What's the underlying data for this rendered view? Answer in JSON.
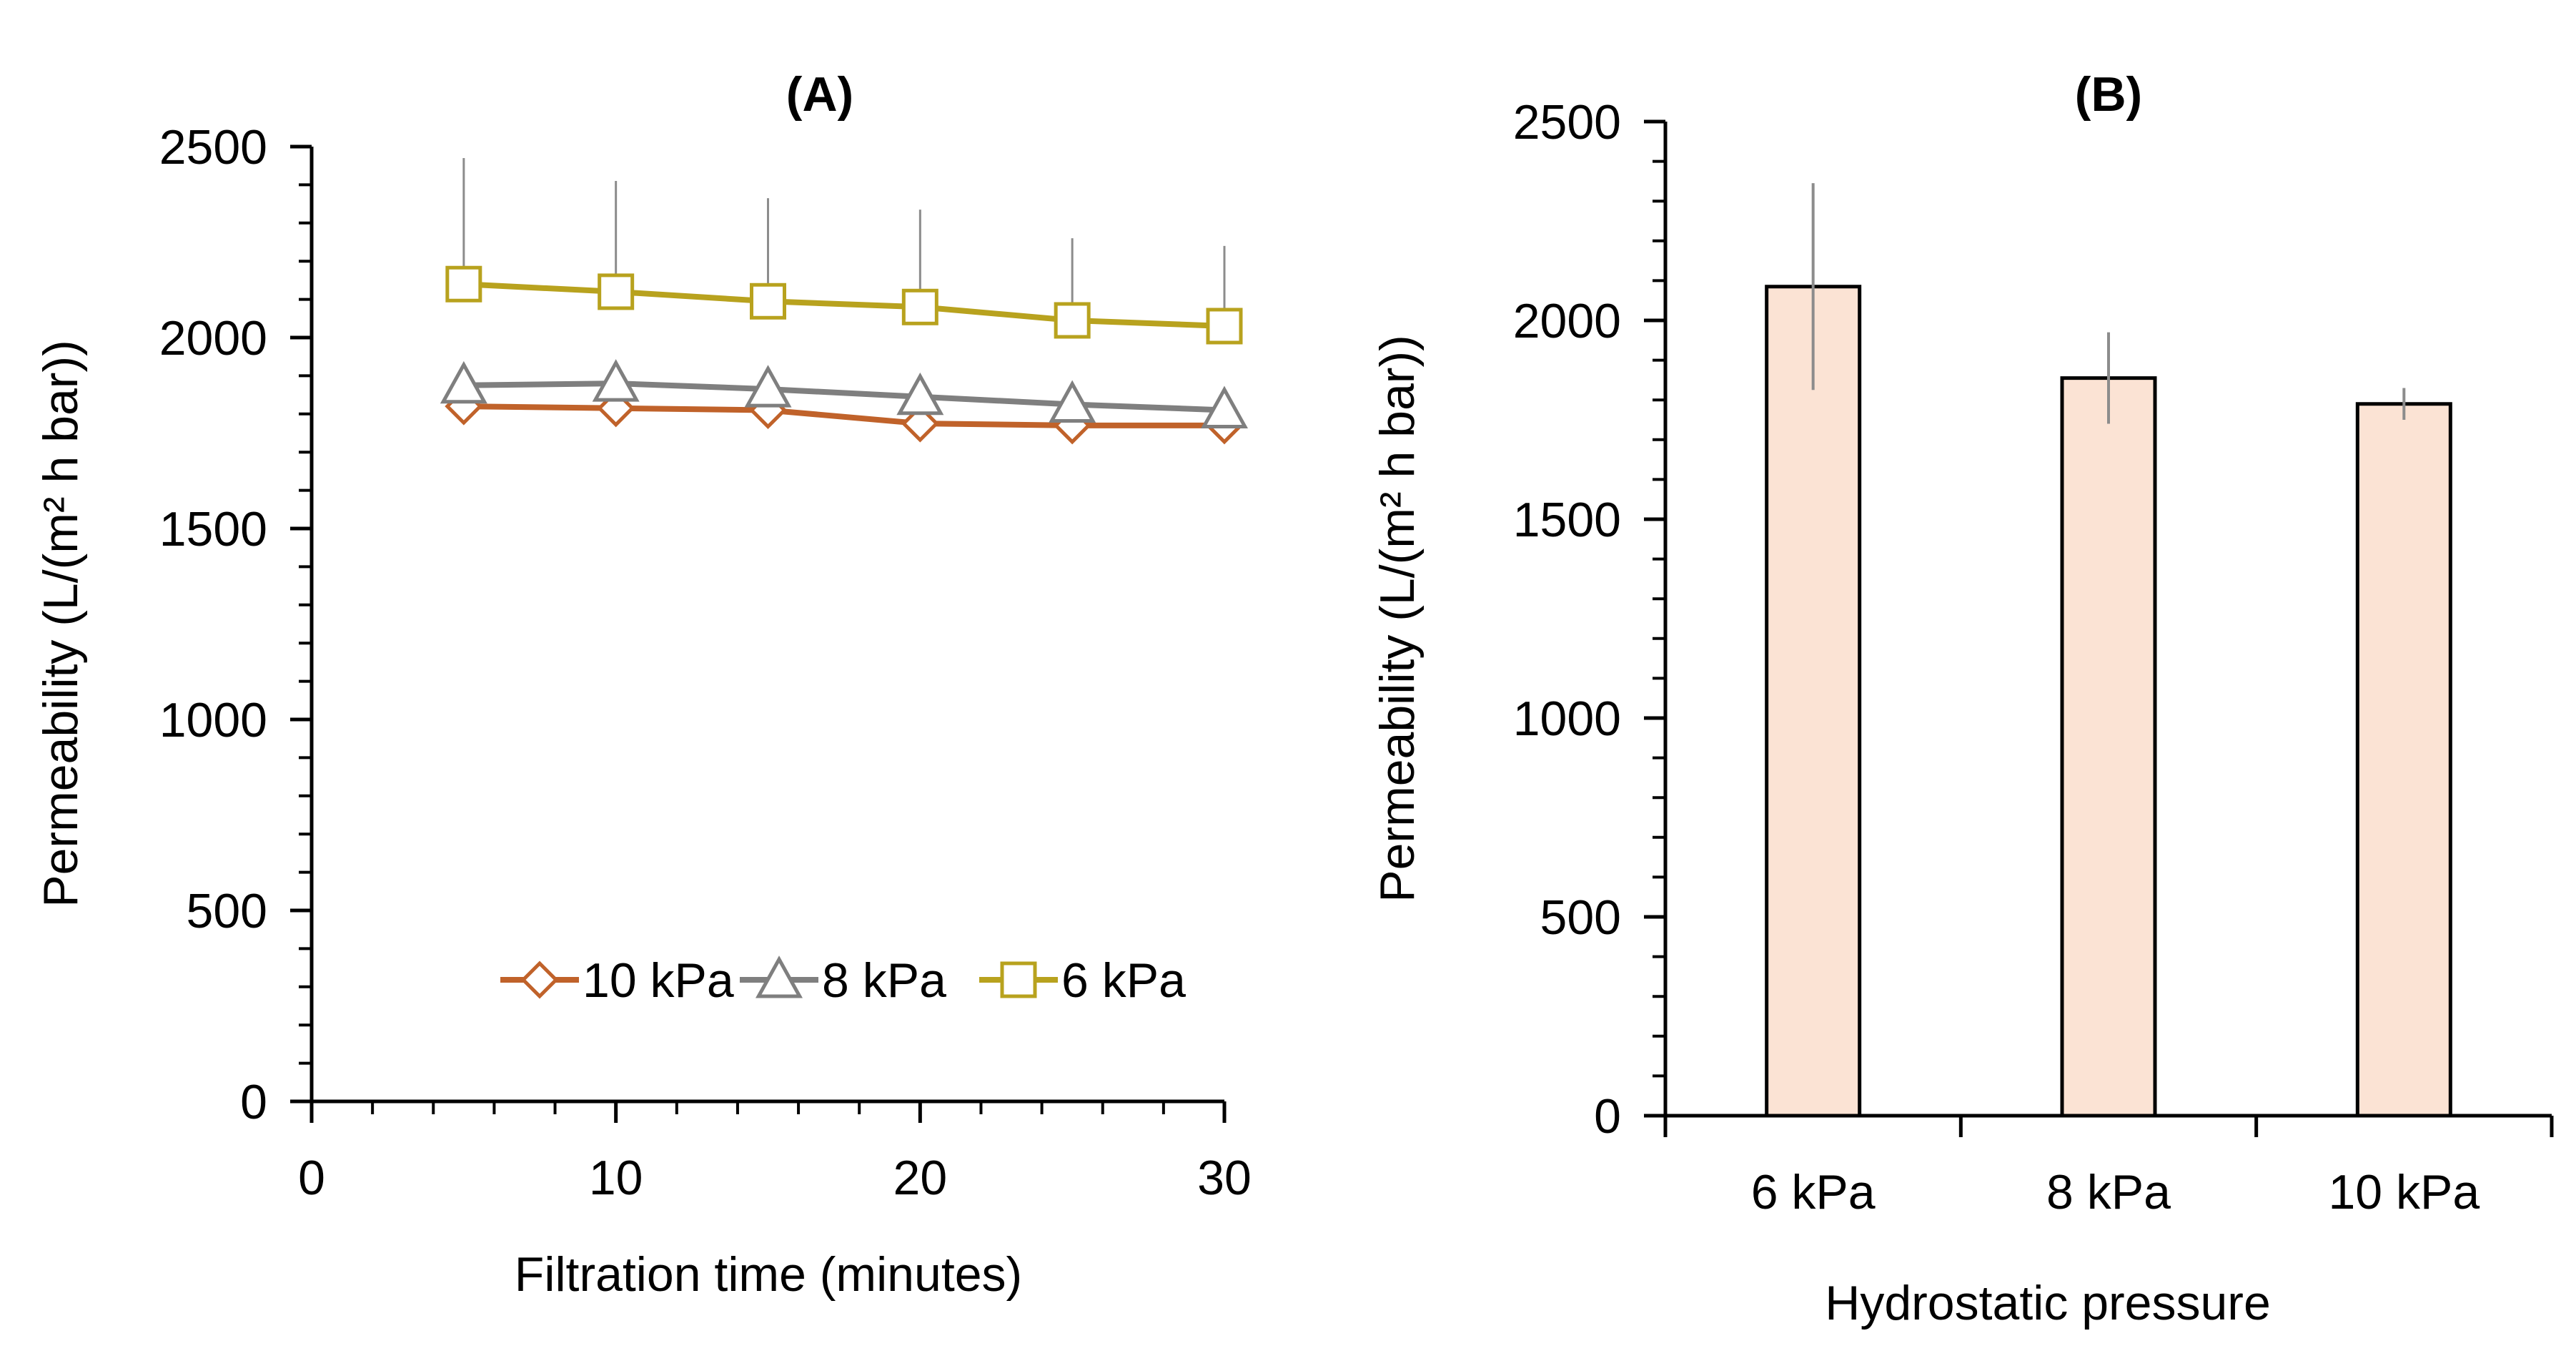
{
  "chart_data": [
    {
      "panel": "A",
      "type": "line",
      "title": "(A)",
      "xlabel": "Filtration time (minutes)",
      "ylabel": "Permeability (L/(m² h bar))",
      "xlim": [
        0,
        30
      ],
      "ylim": [
        0,
        2500
      ],
      "xticks": [
        0,
        10,
        20,
        30
      ],
      "yticks": [
        0,
        500,
        1000,
        1500,
        2000,
        2500
      ],
      "x": [
        5,
        10,
        15,
        20,
        25,
        30
      ],
      "legend_position": "bottom-right",
      "series": [
        {
          "name": "10 kPa",
          "marker": "diamond",
          "color": "#C0622A",
          "values": [
            1820,
            1815,
            1810,
            1775,
            1770,
            1770
          ]
        },
        {
          "name": "8 kPa",
          "marker": "triangle",
          "color": "#7F7F7F",
          "values": [
            1875,
            1880,
            1865,
            1845,
            1825,
            1810
          ],
          "error": [
            0,
            0,
            0,
            0,
            0,
            0
          ]
        },
        {
          "name": "6 kPa",
          "marker": "square",
          "color": "#B8A21E",
          "values": [
            2140,
            2120,
            2095,
            2080,
            2045,
            2030
          ],
          "error": [
            330,
            290,
            270,
            255,
            215,
            210
          ]
        }
      ]
    },
    {
      "panel": "B",
      "type": "bar",
      "title": "(B)",
      "xlabel": "Hydrostatic pressure",
      "ylabel": "Permeability (L/(m² h bar))",
      "ylim": [
        0,
        2500
      ],
      "yticks": [
        0,
        500,
        1000,
        1500,
        2000,
        2500
      ],
      "categories": [
        "6 kPa",
        "8 kPa",
        "10 kPa"
      ],
      "values": [
        2085,
        1855,
        1790
      ],
      "error": [
        260,
        115,
        40
      ],
      "bar_color": "#FBE3D4"
    }
  ]
}
